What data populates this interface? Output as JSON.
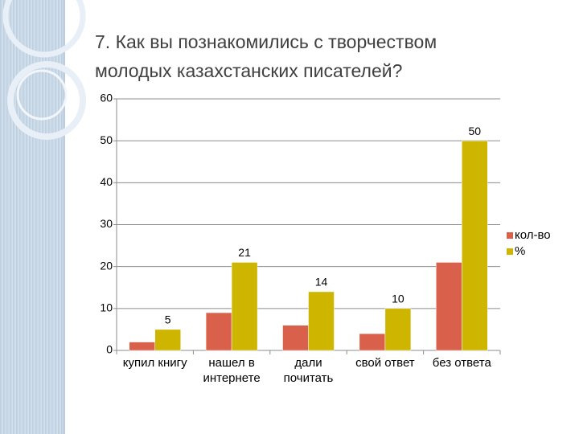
{
  "chart_data": {
    "type": "bar",
    "title": "7. Как вы познакомились с творчеством молодых казахстанских писателей?",
    "categories": [
      "купил книгу",
      "нашел в интернете",
      "дали почитать",
      "свой ответ",
      "без ответа"
    ],
    "series": [
      {
        "name": "кол-во",
        "color": "#d9604a",
        "values": [
          2,
          9,
          6,
          4,
          21
        ]
      },
      {
        "name": "%",
        "color": "#cdb500",
        "values": [
          5,
          21,
          14,
          10,
          50
        ],
        "show_labels": true
      }
    ],
    "ylim": [
      0,
      60
    ],
    "yticks": [
      0,
      10,
      20,
      30,
      40,
      50,
      60
    ],
    "grid": true,
    "legend": "right"
  }
}
